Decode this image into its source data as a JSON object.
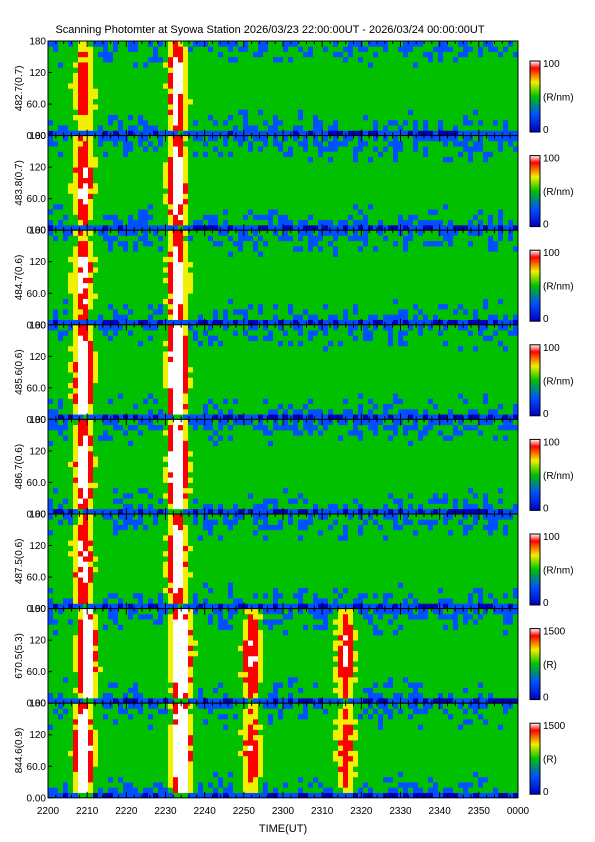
{
  "title": "Scanning Photomter at Syowa Station 2026/03/23 22:00:00UT - 2026/03/24 00:00:00UT",
  "chart_data": {
    "type": "heatmap",
    "xlabel": "TIME(UT)",
    "x_tick_labels": [
      "2200",
      "2210",
      "2220",
      "2230",
      "2240",
      "2250",
      "2300",
      "2310",
      "2320",
      "2330",
      "2340",
      "2350",
      "0000"
    ],
    "x_range_minutes": [
      0,
      120
    ],
    "y_tick_labels": [
      "0.00",
      "60.0",
      "120",
      "180"
    ],
    "y_range": [
      0,
      180
    ],
    "colormap": [
      "#0000c0",
      "#0050ff",
      "#00c000",
      "#f0f000",
      "#ff0000",
      "#ffffff"
    ],
    "panels": [
      {
        "ylabel": "482.7(0.7)",
        "cbar_max": "100",
        "cbar_min": "0",
        "cbar_unit": "(R/nm)",
        "features": [
          {
            "t": 9,
            "level": 0.45
          },
          {
            "t": 33,
            "level": 0.65
          }
        ]
      },
      {
        "ylabel": "483.8(0.7)",
        "cbar_max": "100",
        "cbar_min": "0",
        "cbar_unit": "(R/nm)",
        "features": [
          {
            "t": 9,
            "level": 0.6
          },
          {
            "t": 33,
            "level": 0.75
          }
        ]
      },
      {
        "ylabel": "484.7(0.6)",
        "cbar_max": "100",
        "cbar_min": "0",
        "cbar_unit": "(R/nm)",
        "features": [
          {
            "t": 9,
            "level": 0.55
          },
          {
            "t": 33,
            "level": 0.7
          }
        ]
      },
      {
        "ylabel": "485.6(0.6)",
        "cbar_max": "100",
        "cbar_min": "0",
        "cbar_unit": "(R/nm)",
        "features": [
          {
            "t": 9,
            "level": 0.8
          },
          {
            "t": 33,
            "level": 1.0
          }
        ]
      },
      {
        "ylabel": "486.7(0.6)",
        "cbar_max": "100",
        "cbar_min": "0",
        "cbar_unit": "(R/nm)",
        "features": [
          {
            "t": 9,
            "level": 0.7
          },
          {
            "t": 33,
            "level": 0.95
          }
        ]
      },
      {
        "ylabel": "487.5(0.6)",
        "cbar_max": "100",
        "cbar_min": "0",
        "cbar_unit": "(R/nm)",
        "features": [
          {
            "t": 9,
            "level": 0.6
          },
          {
            "t": 33,
            "level": 0.75
          }
        ]
      },
      {
        "ylabel": "670.5(5.3)",
        "cbar_max": "1500",
        "cbar_min": "0",
        "cbar_unit": "(R)",
        "features": [
          {
            "t": 10,
            "level": 0.9
          },
          {
            "t": 34,
            "level": 1.0
          },
          {
            "t": 52,
            "level": 0.55
          },
          {
            "t": 76,
            "level": 0.55
          }
        ]
      },
      {
        "ylabel": "844.6(0.9)",
        "cbar_max": "1500",
        "cbar_min": "0",
        "cbar_unit": "(R)",
        "features": [
          {
            "t": 9,
            "level": 0.9
          },
          {
            "t": 34,
            "level": 1.0
          },
          {
            "t": 52,
            "level": 0.45
          },
          {
            "t": 76,
            "level": 0.45
          }
        ]
      }
    ]
  }
}
